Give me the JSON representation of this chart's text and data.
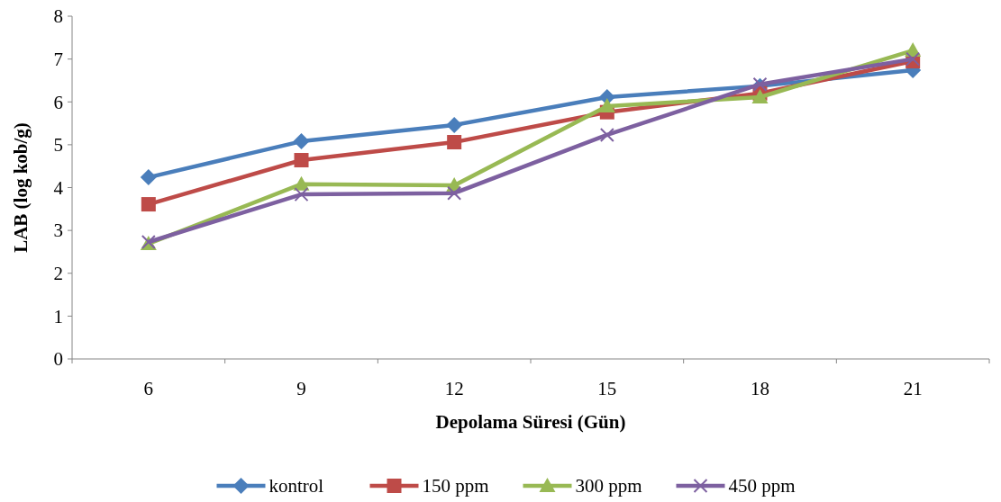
{
  "chart_data": {
    "type": "line",
    "xlabel": "Depolama Süresi (Gün)",
    "ylabel": "LAB (log kob/g)",
    "categories": [
      "6",
      "9",
      "12",
      "15",
      "18",
      "21"
    ],
    "ylim": [
      0,
      8
    ],
    "yticks": [
      0,
      1,
      2,
      3,
      4,
      5,
      6,
      7,
      8
    ],
    "grid": false,
    "legend": "bottom",
    "line_style": "solid",
    "series": [
      {
        "name": "kontrol",
        "color": "#4a7ebb",
        "marker": "diamond",
        "values": [
          4.24,
          5.08,
          5.46,
          6.11,
          6.37,
          6.74
        ]
      },
      {
        "name": "150 ppm",
        "color": "#be4b48",
        "marker": "square",
        "values": [
          3.61,
          4.64,
          5.06,
          5.76,
          6.2,
          6.95
        ]
      },
      {
        "name": "300 ppm",
        "color": "#98b954",
        "marker": "triangle",
        "values": [
          2.69,
          4.08,
          4.05,
          5.9,
          6.11,
          7.2
        ]
      },
      {
        "name": "450 ppm",
        "color": "#7d60a0",
        "marker": "cross",
        "values": [
          2.73,
          3.84,
          3.87,
          5.23,
          6.41,
          7.0
        ]
      }
    ]
  }
}
